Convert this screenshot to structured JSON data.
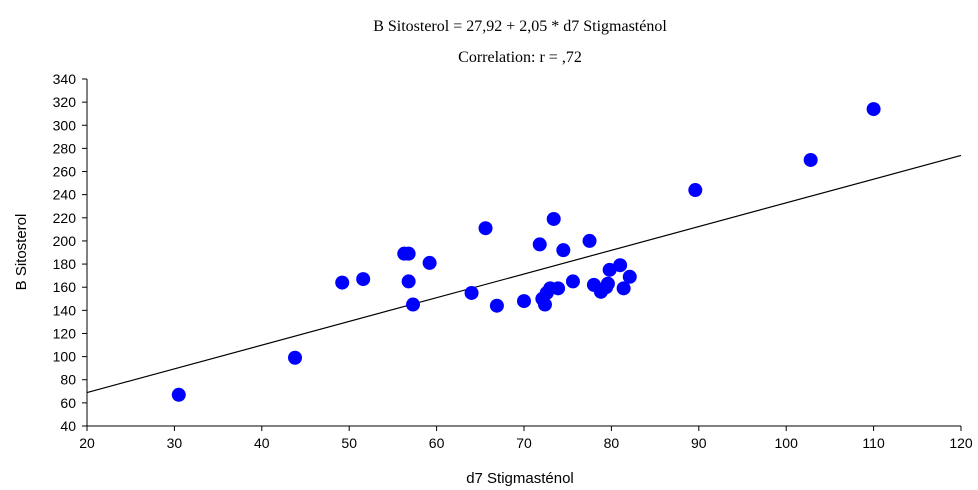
{
  "chart_data": {
    "type": "scatter",
    "title": "B Sitosterol = 27,92 + 2,05 * d7 Stigmasténol",
    "subtitle": "Correlation: r = ,72",
    "xlabel": "d7 Stigmasténol",
    "ylabel": "B Sitosterol",
    "xlim": [
      20,
      120
    ],
    "ylim": [
      40,
      340
    ],
    "xticks": [
      20,
      30,
      40,
      50,
      60,
      70,
      80,
      90,
      100,
      110,
      120
    ],
    "yticks": [
      40,
      60,
      80,
      100,
      120,
      140,
      160,
      180,
      200,
      220,
      240,
      260,
      280,
      300,
      320,
      340
    ],
    "regression": {
      "intercept": 27.92,
      "slope": 2.05
    },
    "grid": false,
    "marker_color": "#0000ff",
    "points": [
      {
        "x": 30.5,
        "y": 67
      },
      {
        "x": 43.8,
        "y": 99
      },
      {
        "x": 49.2,
        "y": 164
      },
      {
        "x": 51.6,
        "y": 167
      },
      {
        "x": 56.3,
        "y": 189
      },
      {
        "x": 56.8,
        "y": 189
      },
      {
        "x": 56.8,
        "y": 165
      },
      {
        "x": 57.3,
        "y": 145
      },
      {
        "x": 59.2,
        "y": 181
      },
      {
        "x": 64.0,
        "y": 155
      },
      {
        "x": 65.6,
        "y": 211
      },
      {
        "x": 66.9,
        "y": 144
      },
      {
        "x": 70.0,
        "y": 148
      },
      {
        "x": 71.8,
        "y": 197
      },
      {
        "x": 72.1,
        "y": 150
      },
      {
        "x": 72.4,
        "y": 145
      },
      {
        "x": 72.6,
        "y": 155
      },
      {
        "x": 73.0,
        "y": 159
      },
      {
        "x": 73.4,
        "y": 219
      },
      {
        "x": 73.9,
        "y": 159
      },
      {
        "x": 74.5,
        "y": 192
      },
      {
        "x": 75.6,
        "y": 165
      },
      {
        "x": 77.5,
        "y": 200
      },
      {
        "x": 78.0,
        "y": 162
      },
      {
        "x": 78.8,
        "y": 156
      },
      {
        "x": 79.4,
        "y": 160
      },
      {
        "x": 79.6,
        "y": 163
      },
      {
        "x": 79.8,
        "y": 175
      },
      {
        "x": 81.0,
        "y": 179
      },
      {
        "x": 81.4,
        "y": 159
      },
      {
        "x": 82.1,
        "y": 169
      },
      {
        "x": 89.6,
        "y": 244
      },
      {
        "x": 102.8,
        "y": 270
      },
      {
        "x": 110.0,
        "y": 314
      }
    ]
  }
}
